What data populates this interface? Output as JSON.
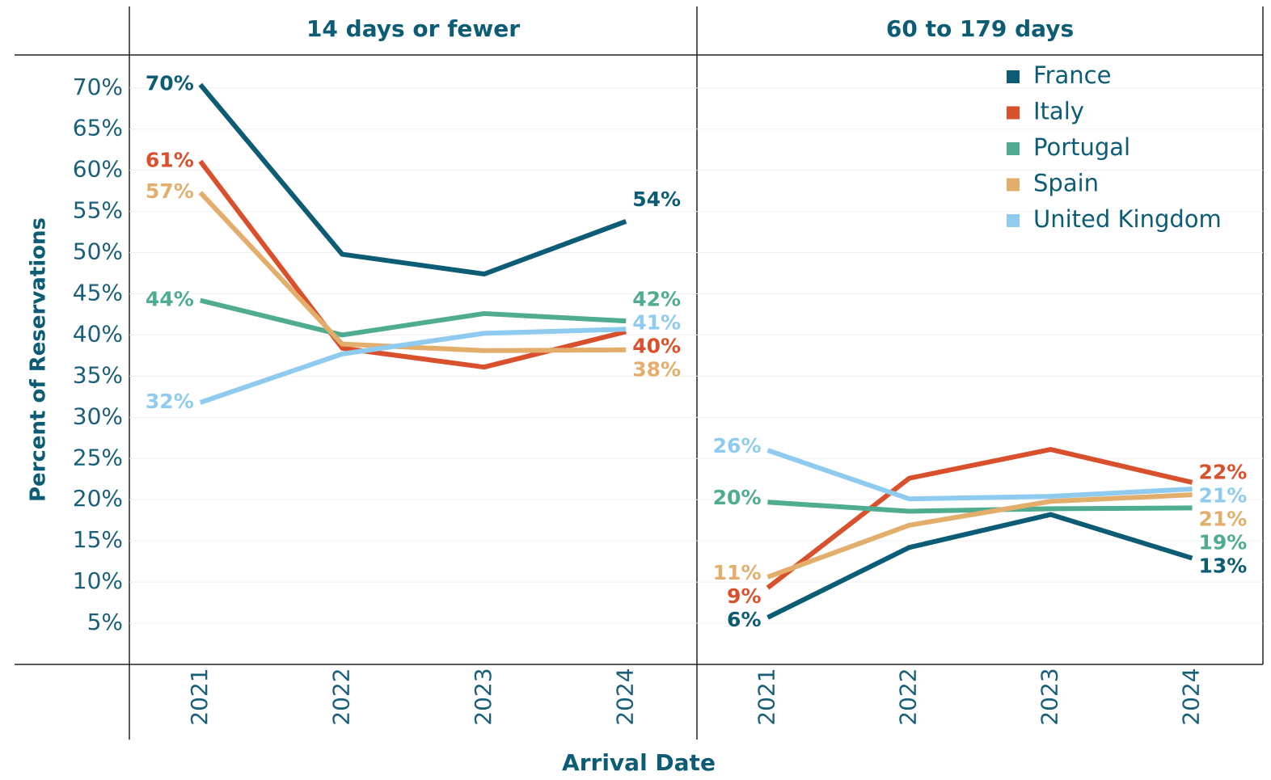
{
  "y_label": "Percent of Reservations",
  "x_label": "Arrival Date",
  "chart_data": [
    {
      "type": "line",
      "title": "14 days or fewer",
      "categories": [
        "2021",
        "2022",
        "2023",
        "2024"
      ],
      "ylim": [
        0,
        74
      ],
      "yticks": [
        {
          "value": 5,
          "label": "5%"
        },
        {
          "value": 10,
          "label": "10%"
        },
        {
          "value": 15,
          "label": "15%"
        },
        {
          "value": 20,
          "label": "20%"
        },
        {
          "value": 25,
          "label": "25%"
        },
        {
          "value": 30,
          "label": "30%"
        },
        {
          "value": 35,
          "label": "35%"
        },
        {
          "value": 40,
          "label": "40%"
        },
        {
          "value": 45,
          "label": "45%"
        },
        {
          "value": 50,
          "label": "50%"
        },
        {
          "value": 55,
          "label": "55%"
        },
        {
          "value": 60,
          "label": "60%"
        },
        {
          "value": 65,
          "label": "65%"
        },
        {
          "value": 70,
          "label": "70%"
        }
      ],
      "grid": true,
      "series": [
        {
          "name": "France",
          "color": "#0d5c75",
          "values": [
            70.4,
            49.8,
            47.4,
            53.8
          ],
          "value_labels": [
            "70%",
            null,
            null,
            "54%"
          ]
        },
        {
          "name": "Italy",
          "color": "#d9512c",
          "values": [
            61.1,
            38.4,
            36.1,
            40.4
          ],
          "value_labels": [
            "61%",
            null,
            null,
            "40%"
          ]
        },
        {
          "name": "Portugal",
          "color": "#4fac91",
          "values": [
            44.2,
            40.0,
            42.6,
            41.7
          ],
          "value_labels": [
            "44%",
            null,
            null,
            "42%"
          ]
        },
        {
          "name": "Spain",
          "color": "#e3ad6b",
          "values": [
            57.3,
            38.9,
            38.1,
            38.2
          ],
          "value_labels": [
            "57%",
            null,
            null,
            "38%"
          ]
        },
        {
          "name": "United Kingdom",
          "color": "#8ecbee",
          "values": [
            31.8,
            37.7,
            40.2,
            40.7
          ],
          "value_labels": [
            "32%",
            null,
            null,
            "41%"
          ]
        }
      ]
    },
    {
      "type": "line",
      "title": "60 to 179 days",
      "categories": [
        "2021",
        "2022",
        "2023",
        "2024"
      ],
      "ylim": [
        0,
        74
      ],
      "yticks": [
        5,
        10,
        15,
        20,
        25,
        30,
        35,
        40,
        45,
        50,
        55,
        60,
        65,
        70
      ],
      "grid": true,
      "legend": "upper right",
      "series": [
        {
          "name": "France",
          "color": "#0d5c75",
          "values": [
            5.7,
            14.2,
            18.2,
            12.9
          ],
          "value_labels": [
            "6%",
            null,
            null,
            "13%"
          ]
        },
        {
          "name": "Italy",
          "color": "#d9512c",
          "values": [
            9.3,
            22.6,
            26.1,
            22.1
          ],
          "value_labels": [
            "9%",
            null,
            null,
            "22%"
          ]
        },
        {
          "name": "Portugal",
          "color": "#4fac91",
          "values": [
            19.7,
            18.6,
            18.9,
            19.0
          ],
          "value_labels": [
            "20%",
            null,
            null,
            "19%"
          ]
        },
        {
          "name": "Spain",
          "color": "#e3ad6b",
          "values": [
            10.6,
            16.9,
            19.8,
            20.6
          ],
          "value_labels": [
            "11%",
            null,
            null,
            "21%"
          ]
        },
        {
          "name": "United Kingdom",
          "color": "#8ecbee",
          "values": [
            26.0,
            20.1,
            20.4,
            21.3
          ],
          "value_labels": [
            "26%",
            null,
            null,
            "21%"
          ]
        }
      ]
    }
  ]
}
